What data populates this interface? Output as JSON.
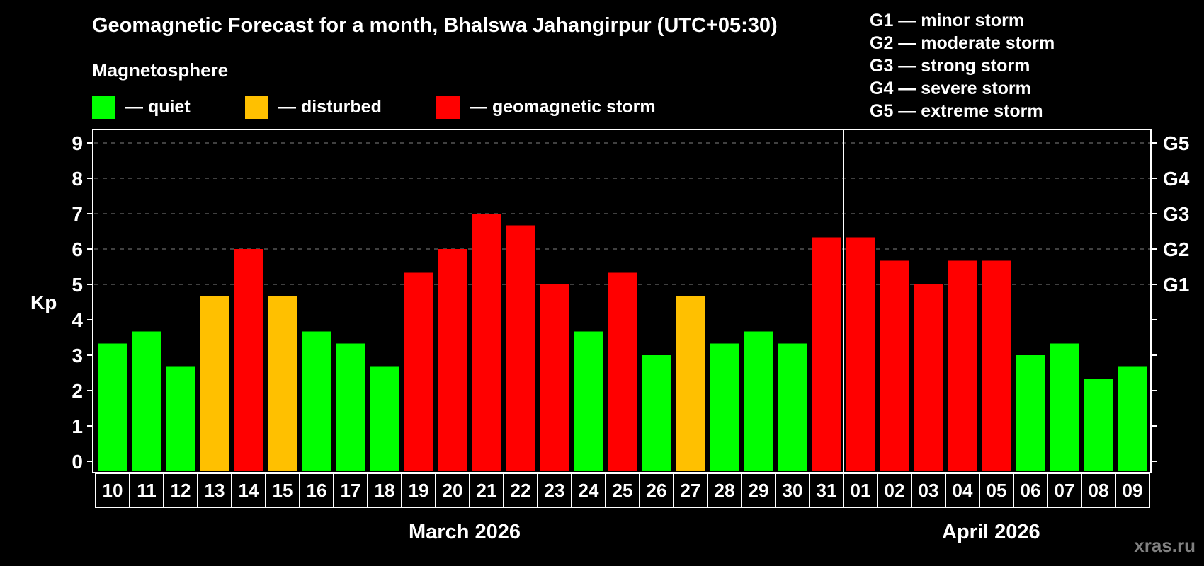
{
  "header": {
    "title": "Geomagnetic Forecast for a month, Bhalswa Jahangirpur (UTC+05:30)",
    "magnetosphere_label": "Magnetosphere"
  },
  "legend": [
    {
      "name": "quiet",
      "label": "— quiet",
      "color": "#00ff00"
    },
    {
      "name": "disturbed",
      "label": "— disturbed",
      "color": "#ffc000"
    },
    {
      "name": "storm",
      "label": "— geomagnetic storm",
      "color": "#ff0000"
    }
  ],
  "g_scale_legend": [
    "G1 — minor storm",
    "G2 — moderate storm",
    "G3 — strong storm",
    "G4 — severe storm",
    "G5 — extreme storm"
  ],
  "months": [
    {
      "label": "March 2026"
    },
    {
      "label": "April 2026"
    }
  ],
  "watermark": "xras.ru",
  "chart_data": {
    "type": "bar",
    "title": "Geomagnetic Forecast for a month, Bhalswa Jahangirpur (UTC+05:30)",
    "xlabel": "",
    "ylabel": "Kp",
    "ylim": [
      0,
      9
    ],
    "yticks": [
      0,
      1,
      2,
      3,
      4,
      5,
      6,
      7,
      8,
      9
    ],
    "right_axis_labels": {
      "5": "G1",
      "6": "G2",
      "7": "G3",
      "8": "G4",
      "9": "G5"
    },
    "gridlines_dashed_at": [
      5,
      6,
      7,
      8,
      9
    ],
    "categories": [
      "10",
      "11",
      "12",
      "13",
      "14",
      "15",
      "16",
      "17",
      "18",
      "19",
      "20",
      "21",
      "22",
      "23",
      "24",
      "25",
      "26",
      "27",
      "28",
      "29",
      "30",
      "31",
      "01",
      "02",
      "03",
      "04",
      "05",
      "06",
      "07",
      "08",
      "09"
    ],
    "values": [
      3.33,
      3.67,
      2.67,
      4.67,
      6.0,
      4.67,
      3.67,
      3.33,
      2.67,
      5.33,
      6.0,
      7.0,
      6.67,
      5.0,
      3.67,
      5.33,
      3.0,
      4.67,
      3.33,
      3.67,
      3.33,
      6.33,
      6.33,
      5.67,
      5.0,
      5.67,
      5.67,
      3.0,
      3.33,
      2.33,
      2.67
    ],
    "status": [
      "quiet",
      "quiet",
      "quiet",
      "disturbed",
      "storm",
      "disturbed",
      "quiet",
      "quiet",
      "quiet",
      "storm",
      "storm",
      "storm",
      "storm",
      "storm",
      "quiet",
      "storm",
      "quiet",
      "disturbed",
      "quiet",
      "quiet",
      "quiet",
      "storm",
      "storm",
      "storm",
      "storm",
      "storm",
      "storm",
      "quiet",
      "quiet",
      "quiet",
      "quiet"
    ],
    "month_groups": [
      {
        "label": "March 2026",
        "from": "10",
        "to": "31"
      },
      {
        "label": "April 2026",
        "from": "01",
        "to": "09"
      }
    ],
    "colors": {
      "quiet": "#00ff00",
      "disturbed": "#ffc000",
      "storm": "#ff0000"
    },
    "legend_position": "top"
  }
}
